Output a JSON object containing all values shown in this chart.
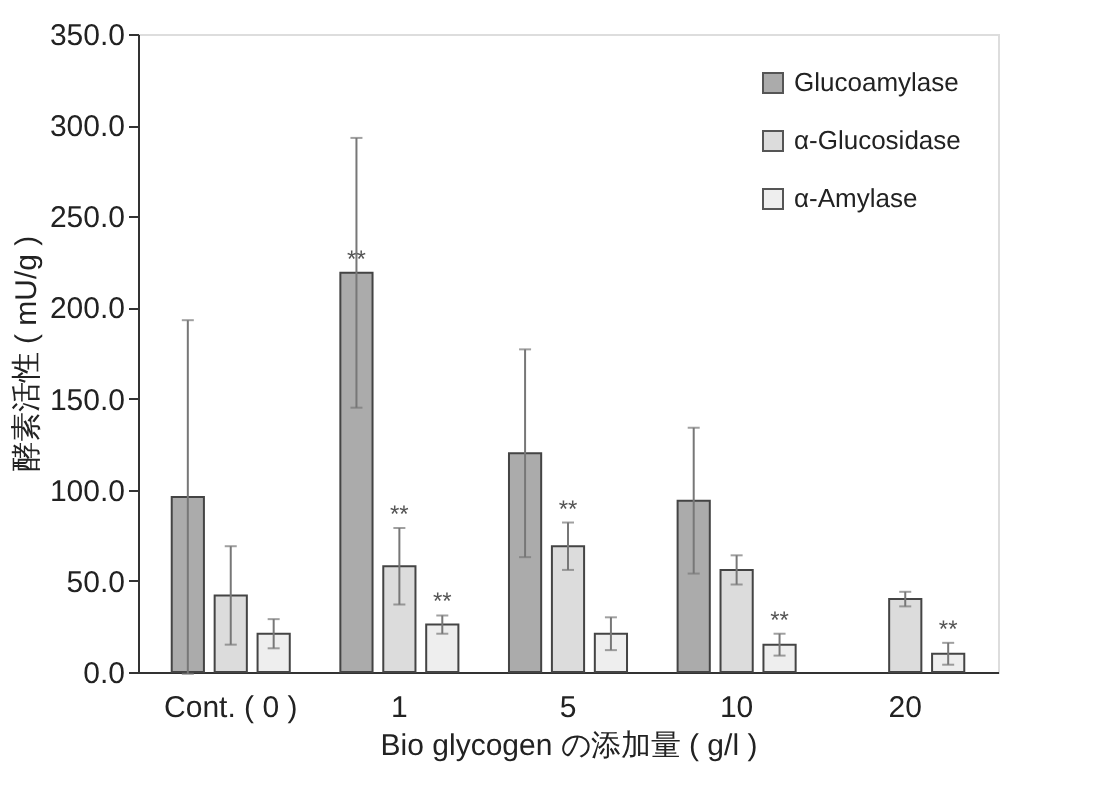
{
  "chart_data": {
    "type": "bar",
    "xlabel": "Bio glycogen の添加量 ( g/l )",
    "ylabel": "酵素活性 ( mU/g )",
    "categories": [
      "Cont. ( 0 )",
      "1",
      "5",
      "10",
      "20"
    ],
    "series": [
      {
        "name": "Glucoamylase",
        "color": "#ababab",
        "values": [
          96,
          219,
          120,
          94,
          null
        ],
        "errors": [
          97,
          74,
          57,
          40,
          null
        ],
        "value_labels": [
          null,
          "**",
          null,
          null,
          null
        ]
      },
      {
        "name": "α-Glucosidase",
        "color": "#dcdcdc",
        "values": [
          42,
          58,
          69,
          56,
          40
        ],
        "errors": [
          27,
          21,
          13,
          8,
          4
        ],
        "value_labels": [
          null,
          "**",
          "**",
          null,
          null
        ]
      },
      {
        "name": "α-Amylase",
        "color": "#eeeeee",
        "values": [
          21,
          26,
          21,
          15,
          10
        ],
        "errors": [
          8,
          5,
          9,
          6,
          6
        ],
        "value_labels": [
          null,
          "**",
          null,
          "**",
          "**"
        ]
      }
    ],
    "ylim": [
      0,
      350
    ],
    "yticks": [
      {
        "value": 0,
        "label": "0.0"
      },
      {
        "value": 50,
        "label": "50.0"
      },
      {
        "value": 100,
        "label": "100.0"
      },
      {
        "value": 150,
        "label": "150.0"
      },
      {
        "value": 200,
        "label": "200.0"
      },
      {
        "value": 250,
        "label": "250.0"
      },
      {
        "value": 300,
        "label": "300.0"
      },
      {
        "value": 350,
        "label": "350.0"
      }
    ],
    "legend": "top right",
    "grid": false
  }
}
